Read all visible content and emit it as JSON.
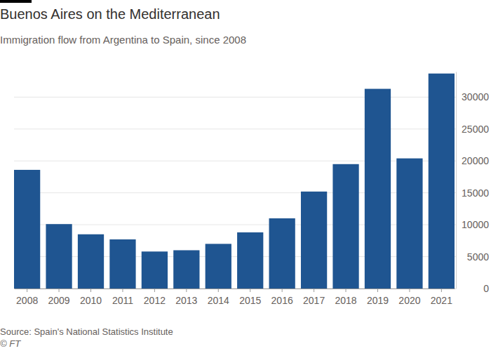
{
  "chart_data": {
    "type": "bar",
    "title": "Buenos Aires on the Mediterranean",
    "subtitle": "Immigration flow from Argentina to Spain, since 2008",
    "source": "Source: Spain's National Statistics Institute",
    "credit": "© FT",
    "categories": [
      "2008",
      "2009",
      "2010",
      "2011",
      "2012",
      "2013",
      "2014",
      "2015",
      "2016",
      "2017",
      "2018",
      "2019",
      "2020",
      "2021"
    ],
    "values": [
      18600,
      10100,
      8500,
      7700,
      5800,
      6000,
      7000,
      8800,
      11000,
      15200,
      19500,
      31300,
      20400,
      33700
    ],
    "color": "#1f5591",
    "ylim": [
      0,
      34000
    ],
    "yticks": [
      0,
      5000,
      10000,
      15000,
      20000,
      25000,
      30000
    ],
    "grid": true
  }
}
